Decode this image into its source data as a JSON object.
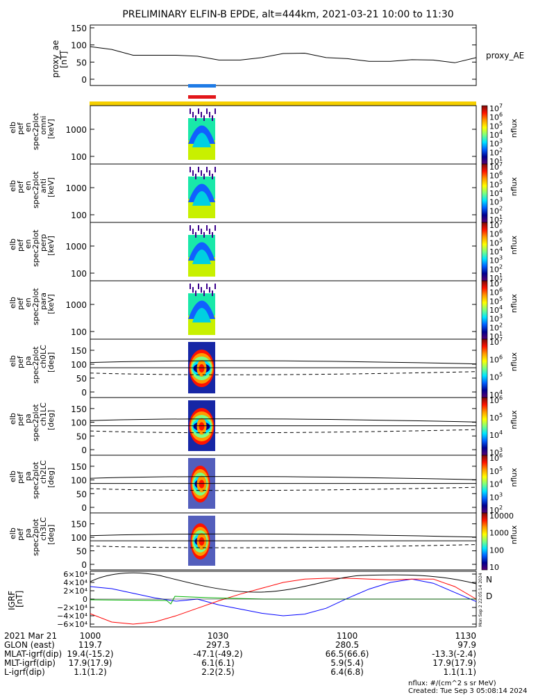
{
  "title": "PRELIMINARY ELFIN-B EPDE, alt=444km, 2021-03-21 10:00 to 11:30",
  "proxy": {
    "ylabel": [
      "proxy_ae",
      "[nT]"
    ],
    "ticks": [
      "150",
      "100",
      "50",
      "0"
    ],
    "series_label": "proxy_AE"
  },
  "colors": {
    "bar_blue": "#1e7be6",
    "bar_red": "#e2161a",
    "bar_yellow": "#f5cf00",
    "B_N": "#0000ff",
    "B_D": "#ff0000"
  },
  "panels": [
    {
      "ylabel": [
        "elb",
        "pef",
        "en",
        "spec2plot",
        "omni",
        "[keV]"
      ],
      "ticks": [
        "1000",
        "100"
      ],
      "cb_ticks": [
        "10",
        "10",
        "10",
        "10",
        "10",
        "10",
        "10"
      ],
      "cb_exps": [
        "7",
        "6",
        "5",
        "4",
        "3",
        "2",
        "1"
      ],
      "cb_label": "nflux"
    },
    {
      "ylabel": [
        "elb",
        "pef",
        "en",
        "spec2plot",
        "anti",
        "[keV]"
      ],
      "ticks": [
        "1000",
        "100"
      ],
      "cb_ticks": [
        "10",
        "10",
        "10",
        "10",
        "10",
        "10",
        "10"
      ],
      "cb_exps": [
        "7",
        "6",
        "5",
        "4",
        "3",
        "2",
        "1"
      ],
      "cb_label": "nflux"
    },
    {
      "ylabel": [
        "elb",
        "pef",
        "en",
        "spec2plot",
        "perp",
        "[keV]"
      ],
      "ticks": [
        "1000",
        "100"
      ],
      "cb_ticks": [
        "10",
        "10",
        "10",
        "10",
        "10",
        "10",
        "10"
      ],
      "cb_exps": [
        "7",
        "6",
        "5",
        "4",
        "3",
        "2",
        "1"
      ],
      "cb_label": "nflux"
    },
    {
      "ylabel": [
        "elb",
        "pef",
        "en",
        "spec2plot",
        "para",
        "[keV]"
      ],
      "ticks": [
        "1000",
        "100"
      ],
      "cb_ticks": [
        "10",
        "10",
        "10",
        "10",
        "10",
        "10",
        "10"
      ],
      "cb_exps": [
        "7",
        "6",
        "5",
        "4",
        "3",
        "2",
        "1"
      ],
      "cb_label": "nflux"
    },
    {
      "ylabel": [
        "elb",
        "pef",
        "pa",
        "spec2plot",
        "ch0LC",
        "[deg]"
      ],
      "ticks": [
        "150",
        "100",
        "50",
        "0"
      ],
      "cb_ticks": [
        "10",
        "10",
        "10",
        "10"
      ],
      "cb_exps": [
        "7",
        "6",
        "5",
        "4"
      ],
      "cb_label": "nflux"
    },
    {
      "ylabel": [
        "elb",
        "pef",
        "pa",
        "spec2plot",
        "ch1LC",
        "[deg]"
      ],
      "ticks": [
        "150",
        "100",
        "50",
        "0"
      ],
      "cb_ticks": [
        "10",
        "10",
        "10",
        "10"
      ],
      "cb_exps": [
        "6",
        "5",
        "4",
        "3"
      ],
      "cb_label": "nflux"
    },
    {
      "ylabel": [
        "elb",
        "pef",
        "pa",
        "spec2plot",
        "ch2LC",
        "[deg]"
      ],
      "ticks": [
        "150",
        "100",
        "50",
        "0"
      ],
      "cb_ticks": [
        "10",
        "10",
        "10",
        "10",
        "10"
      ],
      "cb_exps": [
        "6",
        "5",
        "4",
        "3",
        "2"
      ],
      "cb_label": "nflux"
    },
    {
      "ylabel": [
        "elb",
        "pef",
        "pa",
        "spec2plot",
        "ch3LC",
        "[deg]"
      ],
      "ticks": [
        "150",
        "100",
        "50",
        "0"
      ],
      "cb_ticks": [
        "10000",
        "1000",
        "100",
        "10"
      ],
      "cb_exps": [
        "",
        "",
        "",
        ""
      ],
      "cb_label": "nflux"
    }
  ],
  "igrf": {
    "ylabel": [
      "IGRF",
      "[nT]"
    ],
    "ticks": [
      "6×10⁴",
      "4×10⁴",
      "2×10⁴",
      "0",
      "−2×10⁴",
      "−4×10⁴",
      "−6×10⁴"
    ],
    "legend_N": "N",
    "legend_D": "D",
    "side_stamp": "Mon Sep  2 22:05:14 2024"
  },
  "footer": {
    "rows": [
      {
        "label": "2021 Mar 21",
        "values": [
          "1000",
          "1030",
          "1100",
          "1130"
        ]
      },
      {
        "label": "GLON (east)",
        "values": [
          "119.7",
          "297.3",
          "280.5",
          "97.9"
        ]
      },
      {
        "label": "MLAT-igrf(dip)",
        "values": [
          "19.4(-15.2)",
          "-47.1(-49.2)",
          "66.5(66.6)",
          "-13.3(-2.4)"
        ]
      },
      {
        "label": "MLT-igrf(dip)",
        "values": [
          "17.9(17.9)",
          "6.1(6.1)",
          "5.9(5.4)",
          "17.9(17.9)"
        ]
      },
      {
        "label": "L-igrf(dip)",
        "values": [
          "1.1(1.2)",
          "2.2(2.5)",
          "6.4(6.8)",
          "1.1(1.1)"
        ]
      }
    ],
    "units_note": "nflux: #/(cm^2 s sr MeV)",
    "created": "Created: Tue Sep  3 05:08:14 2024"
  },
  "chart_data": [
    {
      "type": "line",
      "name": "proxy_AE",
      "x": [
        "10:00",
        "10:05",
        "10:10",
        "10:15",
        "10:20",
        "10:25",
        "10:30",
        "10:35",
        "10:40",
        "10:45",
        "10:50",
        "10:55",
        "11:00",
        "11:05",
        "11:10",
        "11:15",
        "11:20",
        "11:25",
        "11:30"
      ],
      "values": [
        95,
        87,
        70,
        70,
        70,
        67,
        56,
        56,
        63,
        75,
        76,
        63,
        60,
        52,
        52,
        57,
        56,
        48,
        63
      ],
      "ylim": [
        0,
        150
      ]
    },
    {
      "type": "line",
      "name": "IGRF",
      "x": [
        "10:00",
        "10:05",
        "10:10",
        "10:15",
        "10:20",
        "10:25",
        "10:30",
        "10:35",
        "10:40",
        "10:45",
        "10:50",
        "10:55",
        "11:00",
        "11:05",
        "11:10",
        "11:15",
        "11:20",
        "11:25",
        "11:30"
      ],
      "series": [
        {
          "legend": "N",
          "values": [
            30000,
            25000,
            14000,
            3000,
            -5000,
            0,
            -14000,
            -24000,
            -34000,
            -40000,
            -36000,
            -22000,
            2000,
            24000,
            40000,
            48000,
            38000,
            16000,
            -6000
          ]
        },
        {
          "legend": "D",
          "values": [
            -35000,
            -55000,
            -60000,
            -55000,
            -40000,
            -22000,
            -4000,
            12000,
            26000,
            40000,
            48000,
            50000,
            50000,
            48000,
            46000,
            48000,
            48000,
            30000,
            0
          ]
        }
      ],
      "ylim": [
        -60000,
        60000
      ]
    }
  ]
}
